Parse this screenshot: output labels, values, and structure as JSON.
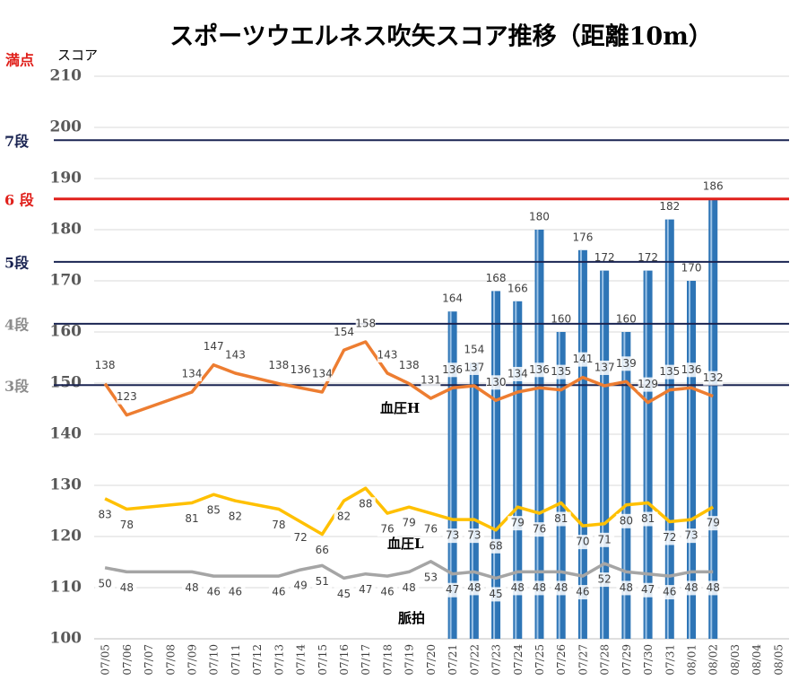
{
  "chart_data": {
    "type": "bar",
    "title": "スポーツウエルネス吹矢スコア推移（距離10m）",
    "y_label": "スコア",
    "y_top_note": "満点",
    "categories": [
      "07/05",
      "07/06",
      "07/07",
      "07/08",
      "07/09",
      "07/10",
      "07/11",
      "07/12",
      "07/13",
      "07/14",
      "07/15",
      "07/16",
      "07/17",
      "07/18",
      "07/19",
      "07/20",
      "07/21",
      "07/22",
      "07/23",
      "07/24",
      "07/25",
      "07/26",
      "07/27",
      "07/28",
      "07/29",
      "07/30",
      "07/31",
      "08/01",
      "08/02",
      "08/03",
      "08/04",
      "08/05"
    ],
    "ylim": [
      100,
      210
    ],
    "yticks": [
      100,
      110,
      120,
      130,
      140,
      150,
      160,
      170,
      180,
      190,
      200,
      210
    ],
    "y2lim": [
      16,
      285
    ],
    "grid": true,
    "connect_gaps": true,
    "reference_lines": [
      {
        "label": "7段",
        "value": 197.5,
        "color": "#1a2452"
      },
      {
        "label": "6 段",
        "value": 186,
        "color": "#e0201b"
      },
      {
        "label": "5段",
        "value": 173.7,
        "color": "#1a2452"
      },
      {
        "label": "4段",
        "value": 161.6,
        "color": "#1a2452",
        "label_color": "#8c8c8c"
      },
      {
        "label": "3段",
        "value": 149.6,
        "color": "#1a2452",
        "label_color": "#8c8c8c"
      }
    ],
    "series": [
      {
        "type": "bar",
        "color": "#2e75b6",
        "values": [
          null,
          null,
          null,
          null,
          null,
          null,
          null,
          null,
          null,
          null,
          null,
          null,
          null,
          null,
          null,
          null,
          164,
          154,
          168,
          166,
          180,
          160,
          176,
          172,
          160,
          172,
          182,
          170,
          186,
          null,
          null,
          null
        ]
      },
      {
        "type": "line",
        "name": "血圧H",
        "axis": "y2",
        "color": "#ed7d31",
        "values": [
          138,
          123,
          null,
          null,
          134,
          147,
          143,
          null,
          138,
          136,
          134,
          154,
          158,
          143,
          138,
          131,
          136,
          137,
          130,
          134,
          136,
          135,
          141,
          137,
          139,
          129,
          135,
          136,
          132,
          null,
          null,
          null
        ]
      },
      {
        "type": "line",
        "name": "血圧L",
        "axis": "y2",
        "color": "#ffc000",
        "values": [
          83,
          78,
          null,
          null,
          81,
          85,
          82,
          null,
          78,
          72,
          66,
          82,
          88,
          76,
          79,
          76,
          73,
          73,
          68,
          79,
          76,
          81,
          70,
          71,
          80,
          81,
          72,
          73,
          79,
          null,
          null,
          null
        ]
      },
      {
        "type": "line",
        "name": "脈拍",
        "axis": "y2",
        "color": "#a5a5a5",
        "values": [
          50,
          48,
          null,
          null,
          48,
          46,
          46,
          null,
          46,
          49,
          51,
          45,
          47,
          46,
          48,
          53,
          47,
          48,
          45,
          48,
          48,
          48,
          46,
          52,
          48,
          47,
          46,
          48,
          48,
          null,
          null,
          null
        ]
      }
    ]
  }
}
